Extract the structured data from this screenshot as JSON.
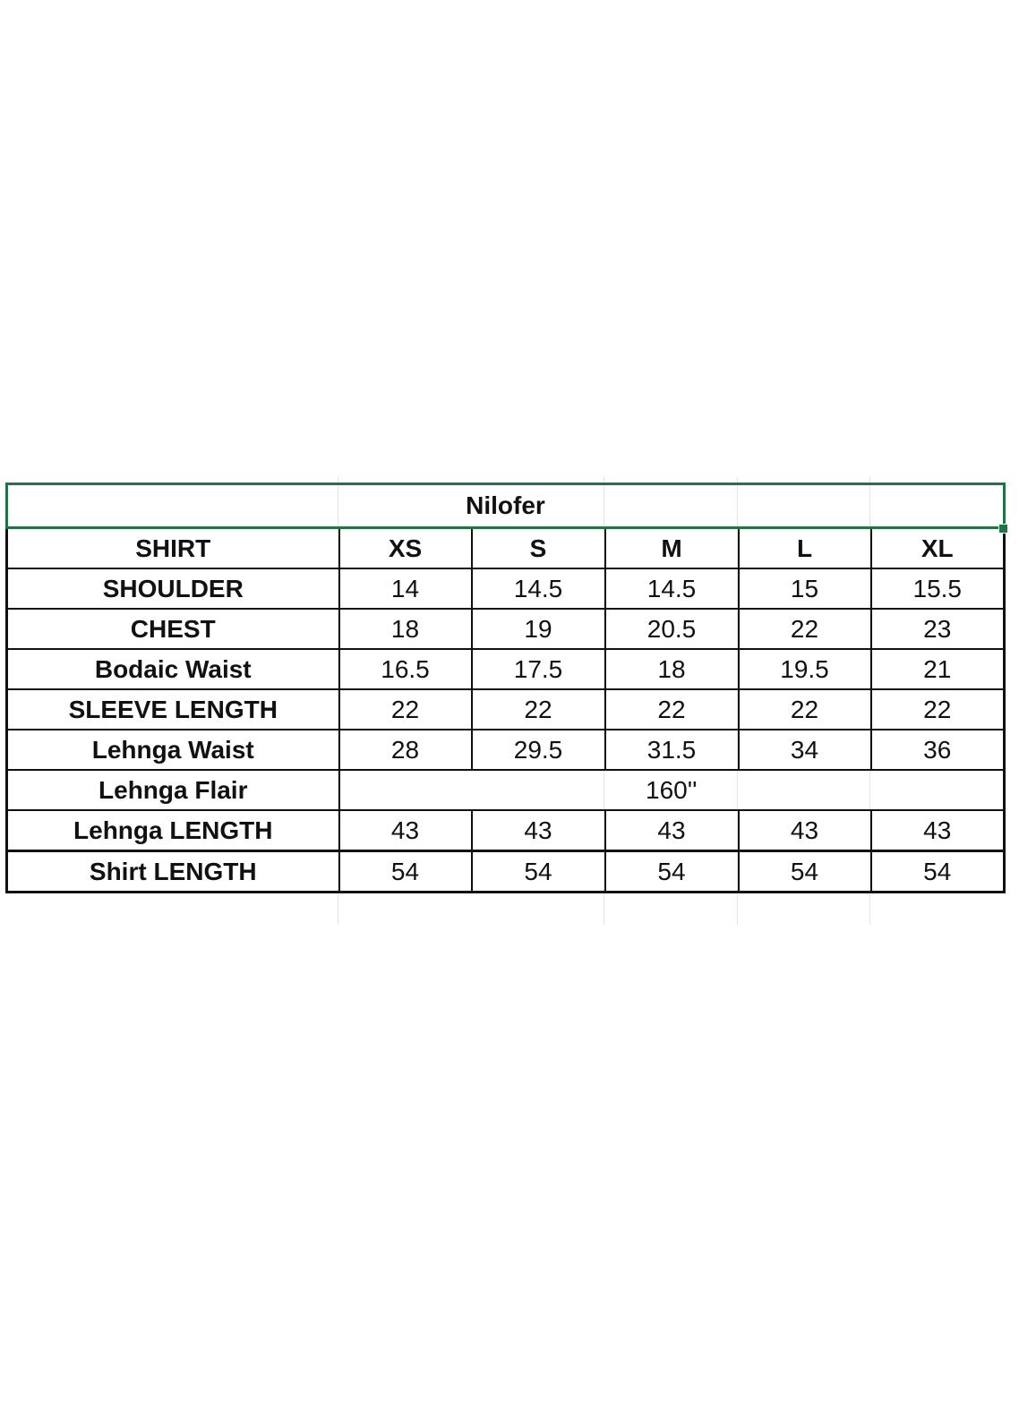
{
  "sheet": {
    "title": "Nilofer",
    "accent_color": "#217346",
    "header": [
      "SHIRT",
      "XS",
      "S",
      "M",
      "L",
      "XL"
    ],
    "rows": [
      {
        "label": "SHOULDER",
        "values": [
          "14",
          "14.5",
          "14.5",
          "15",
          "15.5"
        ]
      },
      {
        "label": "CHEST",
        "values": [
          "18",
          "19",
          "20.5",
          "22",
          "23"
        ]
      },
      {
        "label": "Bodaic Waist",
        "values": [
          "16.5",
          "17.5",
          "18",
          "19.5",
          "21"
        ]
      },
      {
        "label": "SLEEVE LENGTH",
        "values": [
          "22",
          "22",
          "22",
          "22",
          "22"
        ]
      },
      {
        "label": "Lehnga Waist",
        "values": [
          "28",
          "29.5",
          "31.5",
          "34",
          "36"
        ]
      },
      {
        "label": "Lehnga Flair",
        "merged_value": "160''"
      },
      {
        "label": "Lehnga LENGTH",
        "values": [
          "43",
          "43",
          "43",
          "43",
          "43"
        ]
      },
      {
        "label": "Shirt LENGTH",
        "values": [
          "54",
          "54",
          "54",
          "54",
          "54"
        ]
      }
    ]
  }
}
